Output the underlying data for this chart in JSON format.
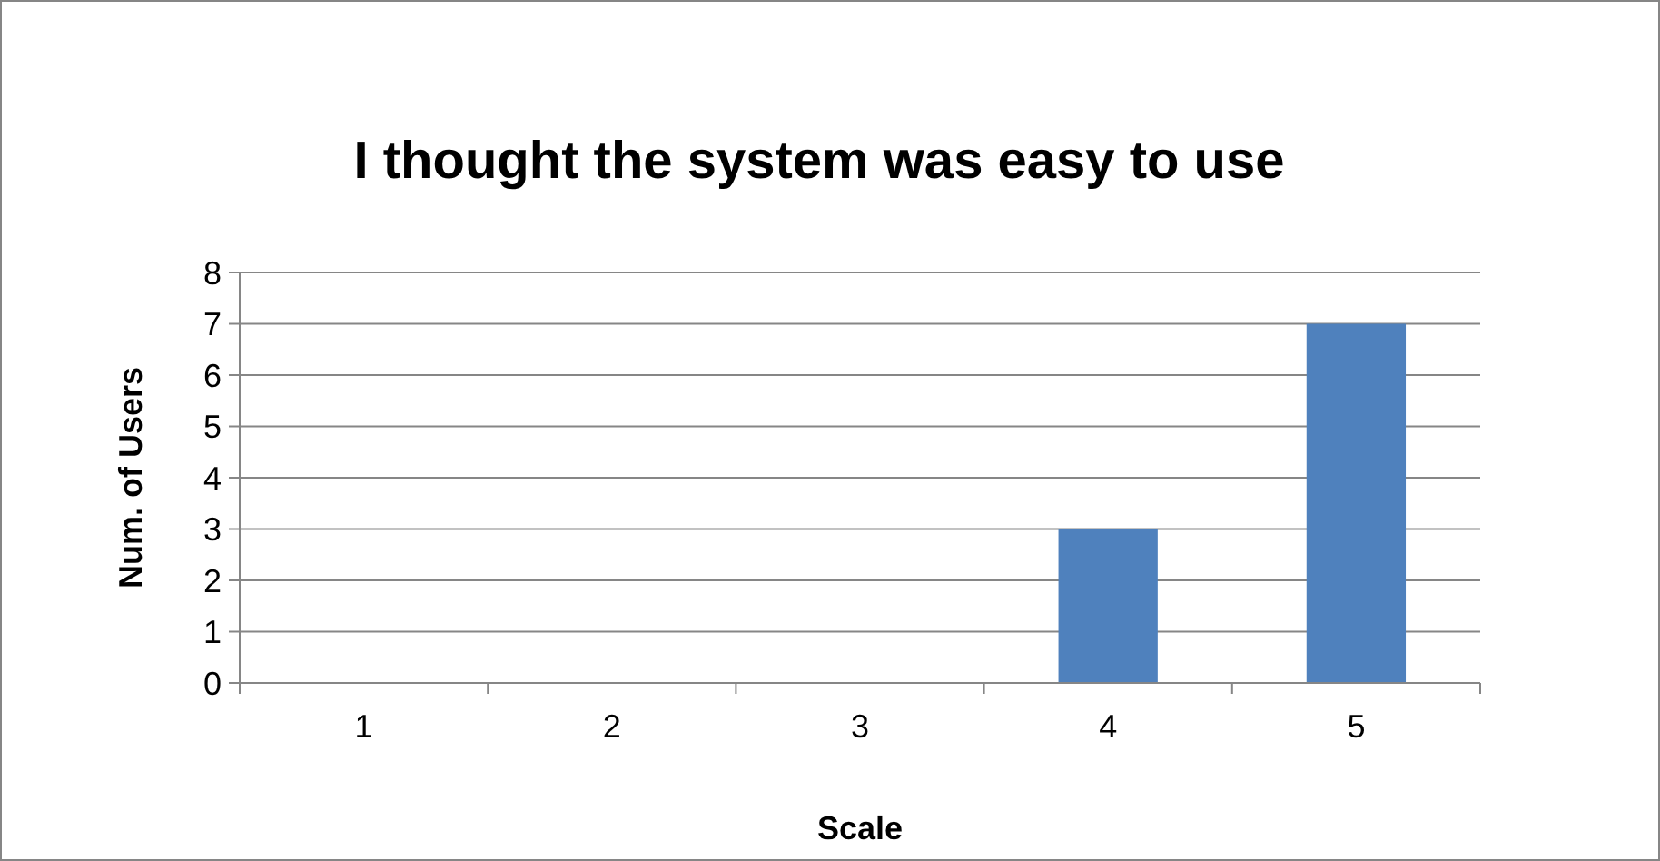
{
  "chart_data": {
    "type": "bar",
    "title": "I thought the system was easy to use",
    "xlabel": "Scale",
    "ylabel": "Num. of Users",
    "categories": [
      "1",
      "2",
      "3",
      "4",
      "5"
    ],
    "values": [
      0,
      0,
      0,
      3,
      7
    ],
    "color": "#4f81bd",
    "ylim": [
      0,
      8
    ],
    "yticks": [
      0,
      1,
      2,
      3,
      4,
      5,
      6,
      7,
      8
    ],
    "grid": "y"
  }
}
